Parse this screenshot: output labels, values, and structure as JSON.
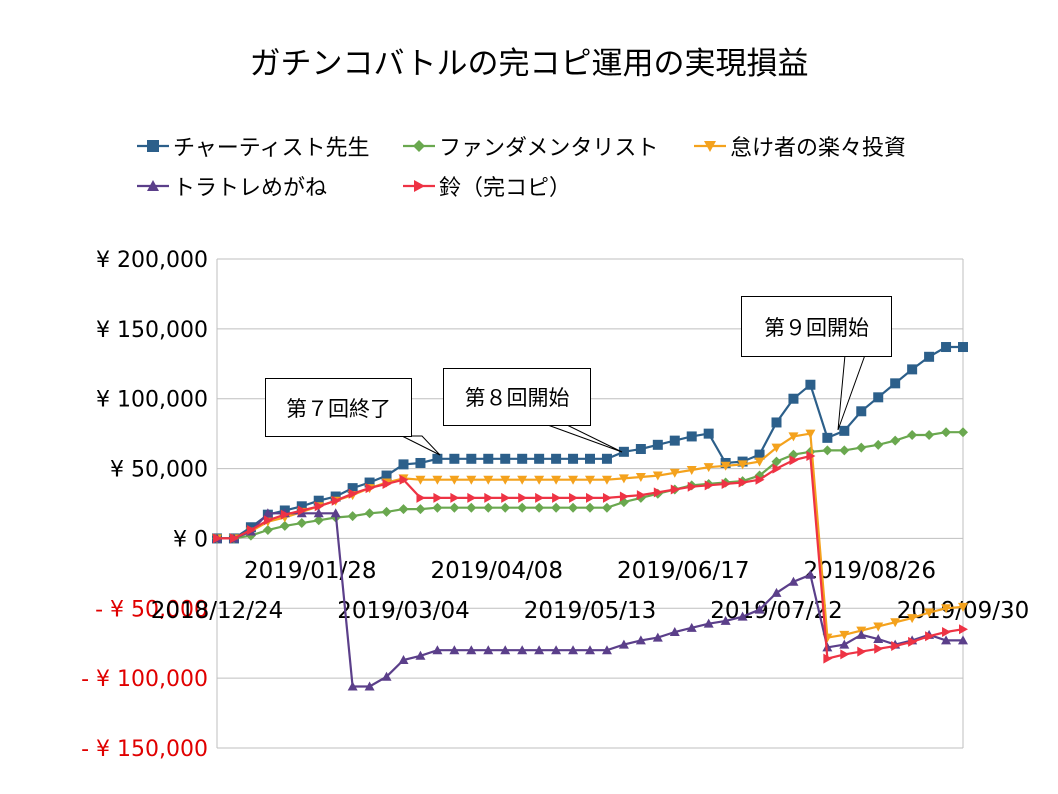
{
  "chart_data": {
    "type": "line",
    "title": "ガチンコバトルの完コピ運用の実現損益",
    "xlabel": "",
    "ylabel": "",
    "ylim": [
      -150000,
      200000
    ],
    "yticks": [
      200000,
      150000,
      100000,
      50000,
      0,
      -50000,
      -100000,
      -150000
    ],
    "ytick_labels": [
      "¥ 200,000",
      "¥ 150,000",
      "¥ 100,000",
      "¥ 50,000",
      "¥ 0",
      "- ¥ 50,000",
      "- ¥ 100,000",
      "- ¥ 150,000"
    ],
    "xtick_labels_upper": [
      "2019/01/28",
      "2019/04/08",
      "2019/06/17",
      "2019/08/26"
    ],
    "xtick_labels_lower": [
      "2018/12/24",
      "2019/03/04",
      "2019/05/13",
      "2019/07/22",
      "2019/09/30"
    ],
    "x_start": "2018/12/24",
    "x_end": "2019/09/30",
    "point_interval_days": 7,
    "grid": true,
    "legend_position": "top",
    "negative_label_color": "#e00000",
    "series": [
      {
        "name": "チャーティスト先生",
        "color": "#2c5f8a",
        "marker": "square",
        "values": [
          0,
          0,
          8000,
          17000,
          20000,
          23000,
          27000,
          30000,
          36000,
          40000,
          45000,
          53000,
          54000,
          57000,
          57000,
          57000,
          57000,
          57000,
          57000,
          57000,
          57000,
          57000,
          57000,
          57000,
          62000,
          64000,
          67000,
          70000,
          73000,
          75000,
          54000,
          55000,
          60000,
          83000,
          100000,
          110000,
          72000,
          77000,
          91000,
          101000,
          111000,
          121000,
          130000,
          137000,
          137000
        ]
      },
      {
        "name": "ファンダメンタリスト",
        "color": "#6aa84f",
        "marker": "diamond",
        "values": [
          0,
          0,
          2000,
          6000,
          9000,
          11000,
          13000,
          15000,
          16000,
          18000,
          19000,
          21000,
          21000,
          22000,
          22000,
          22000,
          22000,
          22000,
          22000,
          22000,
          22000,
          22000,
          22000,
          22000,
          26000,
          29000,
          32000,
          35000,
          38000,
          39000,
          40000,
          41000,
          45000,
          55000,
          60000,
          62000,
          63000,
          63000,
          65000,
          67000,
          70000,
          74000,
          74000,
          76000,
          76000
        ]
      },
      {
        "name": "怠け者の楽々投資",
        "color": "#f4a21d",
        "marker": "triangle-down",
        "values": [
          0,
          0,
          5000,
          12000,
          15000,
          19000,
          23000,
          27000,
          31000,
          36000,
          40000,
          43000,
          42000,
          42000,
          42000,
          42000,
          42000,
          42000,
          42000,
          42000,
          42000,
          42000,
          42000,
          42000,
          43000,
          44000,
          45000,
          47000,
          49000,
          51000,
          52000,
          53000,
          55000,
          65000,
          73000,
          75000,
          -71000,
          -69000,
          -66000,
          -63000,
          -60000,
          -57000,
          -53000,
          -50000,
          -49000
        ]
      },
      {
        "name": "トラトレめがね",
        "color": "#5b3f8a",
        "marker": "triangle-up",
        "values": [
          0,
          0,
          5000,
          18000,
          18000,
          18000,
          18000,
          18000,
          -106000,
          -106000,
          -99000,
          -87000,
          -84000,
          -80000,
          -80000,
          -80000,
          -80000,
          -80000,
          -80000,
          -80000,
          -80000,
          -80000,
          -80000,
          -80000,
          -76000,
          -73000,
          -71000,
          -67000,
          -64000,
          -61000,
          -59000,
          -56000,
          -51000,
          -39000,
          -31000,
          -26000,
          -78000,
          -76000,
          -69000,
          -72000,
          -76000,
          -73000,
          -69000,
          -73000,
          -73000
        ]
      },
      {
        "name": "鈴（完コピ）",
        "color": "#ee3344",
        "marker": "triangle-right",
        "values": [
          0,
          0,
          6000,
          13000,
          17000,
          20000,
          23000,
          27000,
          32000,
          36000,
          39000,
          42000,
          29000,
          29000,
          29000,
          29000,
          29000,
          29000,
          29000,
          29000,
          29000,
          29000,
          29000,
          29000,
          30000,
          31000,
          33000,
          35000,
          37000,
          38000,
          39000,
          40000,
          42000,
          50000,
          56000,
          59000,
          -86000,
          -83000,
          -81000,
          -79000,
          -77000,
          -74000,
          -70000,
          -67000,
          -65000
        ]
      }
    ],
    "annotations": [
      {
        "text": "第７回終了",
        "index": 13
      },
      {
        "text": "第８回開始",
        "index": 24
      },
      {
        "text": "第９回開始",
        "index": 37
      }
    ]
  }
}
